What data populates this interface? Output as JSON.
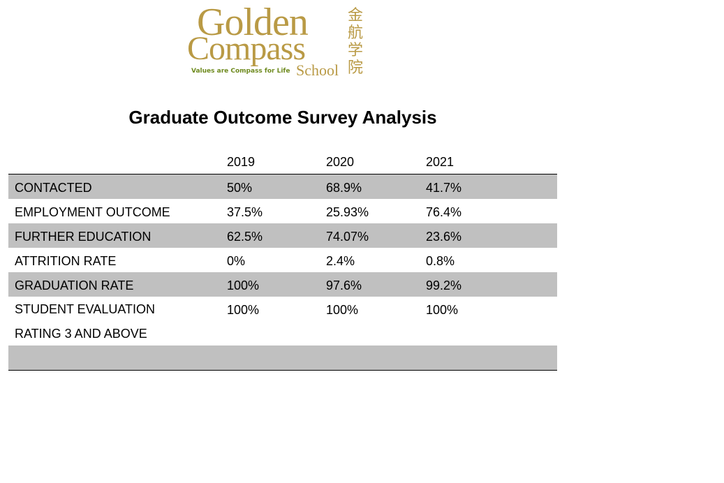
{
  "logo": {
    "word1": "Golden",
    "word2": "Compass",
    "word3": "School",
    "tagline": "Values are Compass for Life",
    "chinese": [
      "金",
      "航",
      "学",
      "院"
    ],
    "color": "#b99a45",
    "tagline_color": "#6e8a1e"
  },
  "title": "Graduate Outcome Survey Analysis",
  "table": {
    "columns": [
      "",
      "2019",
      "2020",
      "2021"
    ],
    "rows": [
      {
        "label": "CONTACTED",
        "values": [
          "50%",
          "68.9%",
          "41.7%"
        ]
      },
      {
        "label": "EMPLOYMENT OUTCOME",
        "values": [
          "37.5%",
          "25.93%",
          "76.4%"
        ]
      },
      {
        "label": "FURTHER EDUCATION",
        "values": [
          "62.5%",
          "74.07%",
          "23.6%"
        ]
      },
      {
        "label": "ATTRITION RATE",
        "values": [
          "0%",
          "2.4%",
          "0.8%"
        ]
      },
      {
        "label": "GRADUATION RATE",
        "values": [
          "100%",
          "97.6%",
          "99.2%"
        ]
      },
      {
        "label": "STUDENT EVALUATION",
        "label2": "RATING 3 AND ABOVE",
        "values": [
          "100%",
          "100%",
          "100%"
        ]
      }
    ],
    "shade_color": "#c0c0c0"
  }
}
